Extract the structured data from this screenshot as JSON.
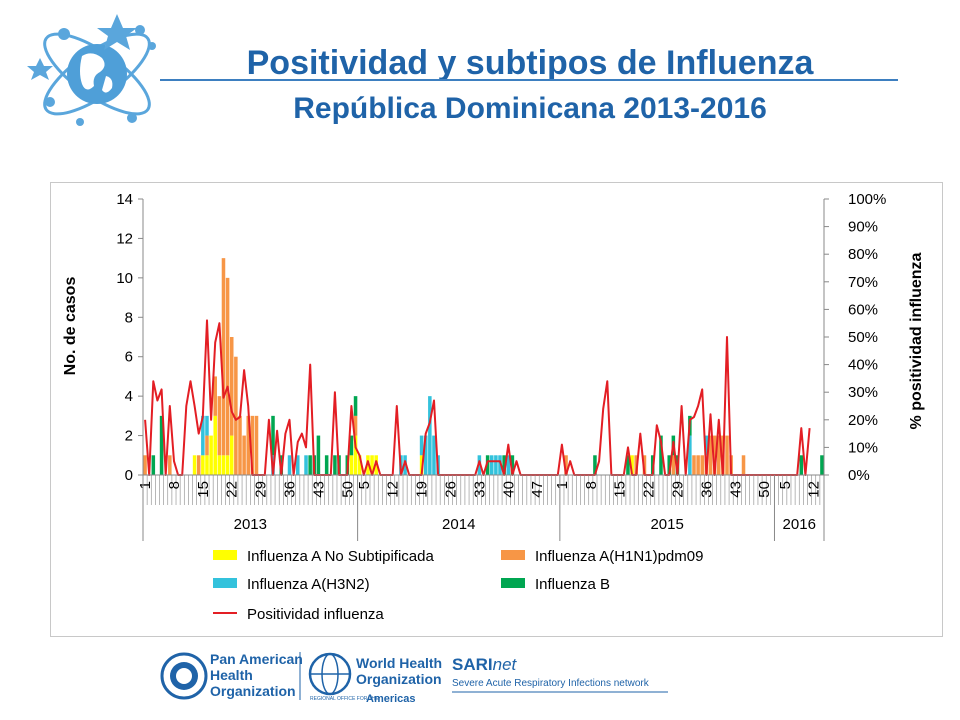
{
  "slide": {
    "title_line1": "Positividad y subtipos de Influenza",
    "title_line2": "República Dominicana 2013-2016"
  },
  "colors": {
    "title": "#1f63a8",
    "no_subtype": "#ffff00",
    "h1n1": "#f79646",
    "h3n2": "#33c2dc",
    "flu_b": "#00a651",
    "positivity": "#e31e24"
  },
  "footer": {
    "paho": [
      "Pan American",
      "Health",
      "Organization"
    ],
    "who": [
      "World Health",
      "Organization"
    ],
    "who_region": "REGIONAL OFFICE FOR THE",
    "who_americas": "Americas",
    "sari_name": "SARI",
    "sari_suffix": "net",
    "sari_tagline": "Severe Acute Respiratory Infections network"
  },
  "chart_data": {
    "type": "bar",
    "stacked": true,
    "ylabel": "No. de casos",
    "y2label": "% positividad influenza",
    "ylim": [
      0,
      14
    ],
    "y2lim": [
      0,
      100
    ],
    "y_ticks": [
      "0",
      "2",
      "4",
      "6",
      "8",
      "10",
      "12",
      "14"
    ],
    "y2_ticks": [
      "0%",
      "10%",
      "20%",
      "30%",
      "40%",
      "50%",
      "60%",
      "70%",
      "80%",
      "90%",
      "100%"
    ],
    "x_tick_labels": [
      {
        "w": 1,
        "label": "1"
      },
      {
        "w": 8,
        "label": "8"
      },
      {
        "w": 15,
        "label": "15"
      },
      {
        "w": 22,
        "label": "22"
      },
      {
        "w": 29,
        "label": "29"
      },
      {
        "w": 36,
        "label": "36"
      },
      {
        "w": 43,
        "label": "43"
      },
      {
        "w": 50,
        "label": "50"
      },
      {
        "w": 54,
        "label": "5"
      },
      {
        "w": 61,
        "label": "12"
      },
      {
        "w": 68,
        "label": "19"
      },
      {
        "w": 75,
        "label": "26"
      },
      {
        "w": 82,
        "label": "33"
      },
      {
        "w": 89,
        "label": "40"
      },
      {
        "w": 96,
        "label": "47"
      },
      {
        "w": 102,
        "label": "1"
      },
      {
        "w": 109,
        "label": "8"
      },
      {
        "w": 116,
        "label": "15"
      },
      {
        "w": 123,
        "label": "22"
      },
      {
        "w": 130,
        "label": "29"
      },
      {
        "w": 137,
        "label": "36"
      },
      {
        "w": 144,
        "label": "43"
      },
      {
        "w": 151,
        "label": "50"
      },
      {
        "w": 156,
        "label": "5"
      },
      {
        "w": 163,
        "label": "12"
      }
    ],
    "years": [
      {
        "label": "2013",
        "start": 1,
        "end": 52
      },
      {
        "label": "2014",
        "start": 53,
        "end": 101
      },
      {
        "label": "2015",
        "start": 102,
        "end": 153
      },
      {
        "label": "2016",
        "start": 154,
        "end": 165
      }
    ],
    "total_weeks": 165,
    "series": [
      {
        "name": "Influenza A No Subtipificada",
        "key": "no_subtype",
        "values": {
          "13": 1,
          "15": 1,
          "16": 1,
          "17": 2,
          "18": 3,
          "19": 1,
          "20": 1,
          "21": 1,
          "22": 2,
          "51": 1,
          "52": 2,
          "53": 1,
          "55": 1,
          "56": 1,
          "57": 1,
          "68": 1,
          "119": 1
        }
      },
      {
        "name": "Influenza A(H1N1)pdm09",
        "key": "h1n1",
        "values": {
          "1": 1,
          "7": 1,
          "14": 1,
          "16": 1,
          "18": 2,
          "19": 3,
          "20": 10,
          "21": 9,
          "22": 5,
          "23": 6,
          "24": 3,
          "25": 2,
          "26": 3,
          "27": 3,
          "28": 3,
          "52": 1,
          "103": 1,
          "120": 1,
          "122": 1,
          "129": 1,
          "134": 1,
          "135": 1,
          "136": 1,
          "137": 1,
          "138": 2,
          "139": 2,
          "140": 2,
          "141": 2,
          "142": 2,
          "143": 1,
          "146": 1
        }
      },
      {
        "name": "Influenza A(H3N2)",
        "key": "h3n2",
        "values": {
          "15": 2,
          "16": 1,
          "32": 1,
          "36": 1,
          "38": 1,
          "40": 1,
          "63": 1,
          "64": 1,
          "68": 1,
          "69": 2,
          "70": 4,
          "71": 2,
          "72": 1,
          "82": 1,
          "85": 1,
          "86": 1,
          "87": 1,
          "89": 1,
          "133": 2,
          "137": 1
        }
      },
      {
        "name": "Influenza B",
        "key": "flu_b",
        "values": {
          "3": 1,
          "5": 3,
          "32": 2,
          "34": 1,
          "41": 1,
          "42": 1,
          "43": 2,
          "45": 1,
          "47": 1,
          "48": 1,
          "50": 1,
          "51": 1,
          "52": 1,
          "84": 1,
          "88": 1,
          "90": 1,
          "110": 1,
          "118": 1,
          "124": 1,
          "126": 2,
          "128": 1,
          "129": 1,
          "130": 1,
          "133": 1,
          "160": 1,
          "165": 1
        }
      }
    ],
    "positivity": {
      "name": "Positividad influenza",
      "points": [
        [
          1,
          20
        ],
        [
          2,
          0
        ],
        [
          3,
          34
        ],
        [
          4,
          27
        ],
        [
          5,
          31
        ],
        [
          6,
          0
        ],
        [
          7,
          25
        ],
        [
          8,
          5
        ],
        [
          9,
          0
        ],
        [
          10,
          0
        ],
        [
          11,
          25
        ],
        [
          12,
          34
        ],
        [
          13,
          25
        ],
        [
          14,
          15
        ],
        [
          15,
          21
        ],
        [
          16,
          56
        ],
        [
          17,
          20
        ],
        [
          18,
          48
        ],
        [
          19,
          55
        ],
        [
          20,
          28
        ],
        [
          21,
          32
        ],
        [
          22,
          23
        ],
        [
          23,
          20
        ],
        [
          24,
          21
        ],
        [
          25,
          38
        ],
        [
          26,
          25
        ],
        [
          27,
          0
        ],
        [
          28,
          0
        ],
        [
          29,
          0
        ],
        [
          30,
          0
        ],
        [
          31,
          20
        ],
        [
          32,
          0
        ],
        [
          33,
          16
        ],
        [
          34,
          0
        ],
        [
          35,
          15
        ],
        [
          36,
          20
        ],
        [
          37,
          0
        ],
        [
          38,
          12
        ],
        [
          39,
          15
        ],
        [
          40,
          10
        ],
        [
          41,
          40
        ],
        [
          42,
          0
        ],
        [
          43,
          0
        ],
        [
          44,
          0
        ],
        [
          45,
          0
        ],
        [
          46,
          0
        ],
        [
          47,
          30
        ],
        [
          48,
          0
        ],
        [
          49,
          0
        ],
        [
          50,
          0
        ],
        [
          51,
          25
        ],
        [
          52,
          10
        ],
        [
          53,
          7
        ],
        [
          54,
          0
        ],
        [
          55,
          5
        ],
        [
          56,
          0
        ],
        [
          57,
          5
        ],
        [
          58,
          0
        ],
        [
          59,
          0
        ],
        [
          60,
          0
        ],
        [
          61,
          0
        ],
        [
          62,
          25
        ],
        [
          63,
          0
        ],
        [
          64,
          5
        ],
        [
          65,
          0
        ],
        [
          66,
          0
        ],
        [
          67,
          0
        ],
        [
          68,
          0
        ],
        [
          69,
          15
        ],
        [
          70,
          19
        ],
        [
          71,
          27
        ],
        [
          72,
          0
        ],
        [
          73,
          0
        ],
        [
          74,
          0
        ],
        [
          75,
          0
        ],
        [
          76,
          0
        ],
        [
          77,
          0
        ],
        [
          78,
          0
        ],
        [
          79,
          0
        ],
        [
          80,
          0
        ],
        [
          81,
          0
        ],
        [
          82,
          5
        ],
        [
          83,
          0
        ],
        [
          84,
          5
        ],
        [
          85,
          5
        ],
        [
          86,
          5
        ],
        [
          87,
          5
        ],
        [
          88,
          0
        ],
        [
          89,
          11
        ],
        [
          90,
          0
        ],
        [
          91,
          5
        ],
        [
          92,
          0
        ],
        [
          93,
          0
        ],
        [
          94,
          0
        ],
        [
          95,
          0
        ],
        [
          96,
          0
        ],
        [
          97,
          0
        ],
        [
          98,
          0
        ],
        [
          99,
          0
        ],
        [
          100,
          0
        ],
        [
          101,
          0
        ],
        [
          102,
          11
        ],
        [
          103,
          0
        ],
        [
          104,
          5
        ],
        [
          105,
          0
        ],
        [
          106,
          0
        ],
        [
          107,
          0
        ],
        [
          108,
          0
        ],
        [
          109,
          0
        ],
        [
          110,
          0
        ],
        [
          111,
          5
        ],
        [
          112,
          24
        ],
        [
          113,
          34
        ],
        [
          114,
          0
        ],
        [
          115,
          0
        ],
        [
          116,
          0
        ],
        [
          117,
          0
        ],
        [
          118,
          10
        ],
        [
          119,
          0
        ],
        [
          120,
          0
        ],
        [
          121,
          15
        ],
        [
          122,
          0
        ],
        [
          123,
          0
        ],
        [
          124,
          0
        ],
        [
          125,
          18
        ],
        [
          126,
          12
        ],
        [
          127,
          0
        ],
        [
          128,
          0
        ],
        [
          129,
          12
        ],
        [
          130,
          0
        ],
        [
          131,
          25
        ],
        [
          132,
          0
        ],
        [
          133,
          20
        ],
        [
          134,
          21
        ],
        [
          135,
          25
        ],
        [
          136,
          31
        ],
        [
          137,
          0
        ],
        [
          138,
          22
        ],
        [
          139,
          0
        ],
        [
          140,
          20
        ],
        [
          141,
          0
        ],
        [
          142,
          50
        ],
        [
          143,
          0
        ],
        [
          144,
          0
        ],
        [
          145,
          0
        ],
        [
          146,
          0
        ],
        [
          147,
          0
        ],
        [
          148,
          0
        ],
        [
          149,
          0
        ],
        [
          150,
          0
        ],
        [
          151,
          0
        ],
        [
          152,
          0
        ],
        [
          153,
          0
        ],
        [
          154,
          0
        ],
        [
          155,
          0
        ],
        [
          156,
          0
        ],
        [
          157,
          0
        ],
        [
          158,
          0
        ],
        [
          159,
          0
        ],
        [
          160,
          17
        ],
        [
          161,
          0
        ],
        [
          162,
          17
        ]
      ]
    },
    "legend": {
      "position": "bottom",
      "items": [
        {
          "key": "no_subtype",
          "label": "Influenza A No Subtipificada",
          "kind": "box"
        },
        {
          "key": "h1n1",
          "label": "Influenza     A(H1N1)pdm09",
          "kind": "box"
        },
        {
          "key": "h3n2",
          "label": "Influenza     A(H3N2)",
          "kind": "box"
        },
        {
          "key": "flu_b",
          "label": "Influenza     B",
          "kind": "box"
        },
        {
          "key": "positivity",
          "label": "Positividad influenza",
          "kind": "line"
        }
      ]
    }
  }
}
